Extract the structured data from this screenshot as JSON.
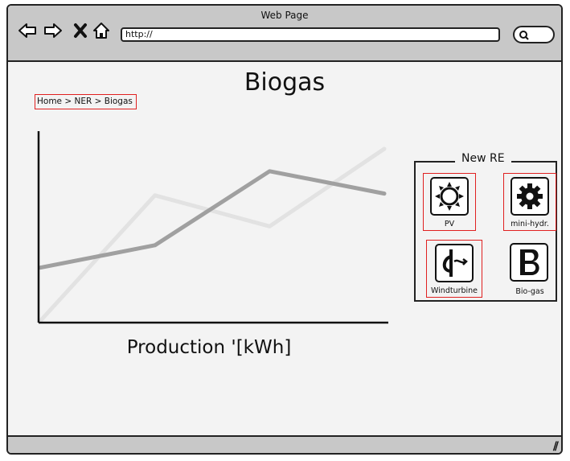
{
  "window": {
    "title": "Web Page"
  },
  "browser": {
    "url": "http://"
  },
  "page": {
    "title": "Biogas",
    "breadcrumb": "Home > NER > Biogas",
    "chart_caption": "Production '[kWh]"
  },
  "panel": {
    "title": "New RE",
    "items": [
      {
        "label": "PV",
        "icon": "sun-icon"
      },
      {
        "label": "mini-hydr.",
        "icon": "gear-icon"
      },
      {
        "label": "Windturbine",
        "icon": "windturbine-icon"
      },
      {
        "label": "Bio-gas",
        "icon": "letter-b-icon"
      }
    ]
  },
  "chart_data": {
    "type": "line",
    "title": "",
    "xlabel": "Production '[kWh]",
    "ylabel": "",
    "x": [
      0,
      1,
      2,
      3
    ],
    "series": [
      {
        "color": "#e2e2e2",
        "values": [
          0,
          0.73,
          0.55,
          1.0
        ]
      },
      {
        "color": "#a0a0a0",
        "values": [
          0.31,
          0.44,
          0.87,
          0.74
        ]
      }
    ],
    "xlim": [
      0,
      3
    ],
    "ylim": [
      0,
      1
    ]
  }
}
